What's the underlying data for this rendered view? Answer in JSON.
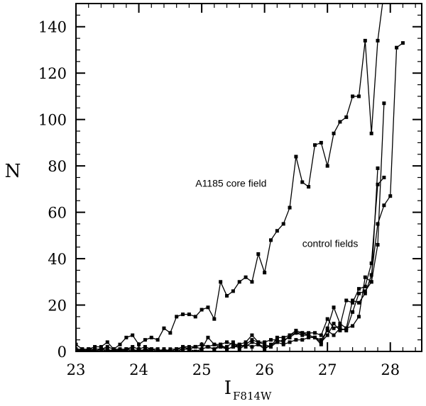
{
  "chart_data": {
    "type": "line",
    "xlabel": "I",
    "xlabel_sub": "F814W",
    "ylabel": "N",
    "xlim": [
      23,
      28.5
    ],
    "ylim": [
      0,
      150
    ],
    "x_ticks": [
      {
        "value": 23,
        "label": "23"
      },
      {
        "value": 24,
        "label": "24"
      },
      {
        "value": 25,
        "label": "25"
      },
      {
        "value": 26,
        "label": "26"
      },
      {
        "value": 27,
        "label": "27"
      },
      {
        "value": 28,
        "label": "28"
      }
    ],
    "y_ticks": [
      {
        "value": 0,
        "label": "0"
      },
      {
        "value": 20,
        "label": "20"
      },
      {
        "value": 40,
        "label": "40"
      },
      {
        "value": 60,
        "label": "60"
      },
      {
        "value": 80,
        "label": "80"
      },
      {
        "value": 100,
        "label": "100"
      },
      {
        "value": 120,
        "label": "120"
      },
      {
        "value": 140,
        "label": "140"
      }
    ],
    "x_minor_step": 0.2,
    "y_minor_step": 5,
    "annotations": [
      {
        "text": "A1185 core field",
        "x": 24.9,
        "y": 71
      },
      {
        "text": "control fields",
        "x": 26.6,
        "y": 45
      }
    ],
    "series": [
      {
        "x": [
          23.0,
          23.1,
          23.2,
          23.3,
          23.4,
          23.5,
          23.6,
          23.7,
          23.8,
          23.9,
          24.0,
          24.1,
          24.2,
          24.3,
          24.4,
          24.5,
          24.6,
          24.7,
          24.8,
          24.9,
          25.0,
          25.1,
          25.2,
          25.3,
          25.4,
          25.5,
          25.6,
          25.7,
          25.8,
          25.9,
          26.0,
          26.1,
          26.2,
          26.3,
          26.4,
          26.5,
          26.6,
          26.7,
          26.8,
          26.9,
          27.0,
          27.1,
          27.2,
          27.3,
          27.4,
          27.5,
          27.6,
          27.7,
          27.8,
          27.9
        ],
        "y": [
          3,
          1,
          1,
          2,
          2,
          4,
          1,
          3,
          6,
          7,
          3,
          5,
          6,
          5,
          10,
          8,
          15,
          16,
          16,
          15,
          18,
          19,
          14,
          30,
          24,
          26,
          30,
          32,
          30,
          42,
          34,
          48,
          52,
          55,
          62,
          84,
          73,
          71,
          89,
          90,
          80,
          94,
          99,
          101,
          110,
          110,
          134,
          94,
          134,
          155
        ]
      },
      {
        "x": [
          23.0,
          23.1,
          23.2,
          23.3,
          23.4,
          23.5,
          23.6,
          23.7,
          23.8,
          23.9,
          24.0,
          24.1,
          24.2,
          24.3,
          24.4,
          24.5,
          24.6,
          24.7,
          24.8,
          24.9,
          25.0,
          25.1,
          25.2,
          25.3,
          25.4,
          25.5,
          25.6,
          25.7,
          25.8,
          25.9,
          26.0,
          26.1,
          26.2,
          26.3,
          26.4,
          26.5,
          26.6,
          26.7,
          26.8,
          26.9,
          27.0,
          27.1,
          27.2,
          27.3,
          27.4,
          27.5,
          27.6,
          27.7,
          27.8,
          27.9,
          28.0,
          28.1,
          28.2
        ],
        "y": [
          1,
          0,
          1,
          1,
          1,
          0,
          1,
          0,
          1,
          1,
          0,
          1,
          1,
          1,
          0,
          0,
          1,
          2,
          1,
          2,
          3,
          2,
          1,
          3,
          1,
          2,
          3,
          2,
          4,
          3,
          2,
          2,
          4,
          5,
          6,
          8,
          7,
          7,
          6,
          4,
          7,
          12,
          9,
          10,
          22,
          21,
          25,
          33,
          55,
          63,
          67,
          131,
          133
        ]
      },
      {
        "x": [
          23.0,
          23.1,
          23.2,
          23.3,
          23.4,
          23.5,
          23.6,
          23.7,
          23.8,
          23.9,
          24.0,
          24.1,
          24.2,
          24.3,
          24.4,
          24.5,
          24.6,
          24.7,
          24.8,
          24.9,
          25.0,
          25.1,
          25.2,
          25.3,
          25.4,
          25.5,
          25.6,
          25.7,
          25.8,
          25.9,
          26.0,
          26.1,
          26.2,
          26.3,
          26.4,
          26.5,
          26.6,
          26.7,
          26.8,
          26.9,
          27.0,
          27.1,
          27.2,
          27.3,
          27.4,
          27.5,
          27.6,
          27.7,
          27.8,
          27.9
        ],
        "y": [
          0,
          0,
          1,
          0,
          1,
          0,
          0,
          1,
          0,
          0,
          1,
          0,
          1,
          0,
          1,
          0,
          1,
          1,
          1,
          2,
          1,
          6,
          3,
          2,
          2,
          4,
          1,
          3,
          5,
          4,
          3,
          2,
          6,
          6,
          7,
          8,
          8,
          7,
          6,
          3,
          10,
          19,
          12,
          10,
          11,
          15,
          32,
          30,
          46,
          107
        ]
      },
      {
        "x": [
          23.0,
          23.1,
          23.2,
          23.3,
          23.4,
          23.5,
          23.6,
          23.7,
          23.8,
          23.9,
          24.0,
          24.1,
          24.2,
          24.3,
          24.4,
          24.5,
          24.6,
          24.7,
          24.8,
          24.9,
          25.0,
          25.1,
          25.2,
          25.3,
          25.4,
          25.5,
          25.6,
          25.7,
          25.8,
          25.9,
          26.0,
          26.1,
          26.2,
          26.3,
          26.4,
          26.5,
          26.6,
          26.7,
          26.8,
          26.9,
          27.0,
          27.1,
          27.2,
          27.3,
          27.4,
          27.5,
          27.6,
          27.7,
          27.8,
          27.9
        ],
        "y": [
          1,
          1,
          0,
          1,
          1,
          2,
          1,
          1,
          1,
          2,
          1,
          2,
          1,
          1,
          0,
          1,
          1,
          2,
          2,
          2,
          3,
          2,
          3,
          3,
          4,
          3,
          3,
          4,
          7,
          4,
          4,
          5,
          5,
          4,
          7,
          9,
          8,
          8,
          8,
          7,
          14,
          10,
          11,
          22,
          21,
          27,
          28,
          38,
          72,
          75
        ]
      },
      {
        "x": [
          23.0,
          23.1,
          23.2,
          23.3,
          23.4,
          23.5,
          23.6,
          23.7,
          23.8,
          23.9,
          24.0,
          24.1,
          24.2,
          24.3,
          24.4,
          24.5,
          24.6,
          24.7,
          24.8,
          24.9,
          25.0,
          25.1,
          25.2,
          25.3,
          25.4,
          25.5,
          25.6,
          25.7,
          25.8,
          25.9,
          26.0,
          26.1,
          26.2,
          26.3,
          26.4,
          26.5,
          26.6,
          26.7,
          26.8,
          26.9,
          27.0,
          27.1,
          27.2,
          27.3,
          27.4,
          27.5,
          27.6,
          27.7,
          27.8
        ],
        "y": [
          0,
          1,
          0,
          0,
          1,
          1,
          0,
          0,
          1,
          0,
          0,
          1,
          0,
          0,
          1,
          0,
          0,
          1,
          1,
          0,
          1,
          2,
          1,
          2,
          1,
          2,
          2,
          3,
          2,
          3,
          1,
          3,
          4,
          3,
          4,
          5,
          5,
          6,
          6,
          5,
          9,
          7,
          10,
          9,
          17,
          25,
          26,
          30,
          79
        ]
      }
    ]
  }
}
